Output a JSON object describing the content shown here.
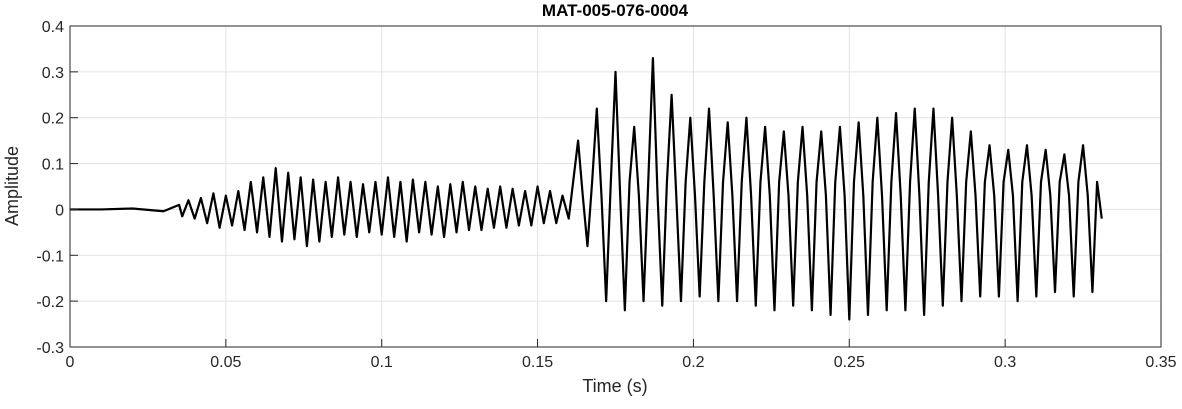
{
  "chart_data": {
    "type": "line",
    "title": "MAT-005-076-0004",
    "x_label": "Time (s)",
    "y_label": "Amplitude",
    "xlim": [
      0,
      0.35
    ],
    "xticks": [
      0,
      0.05,
      0.1,
      0.15,
      0.2,
      0.25,
      0.3,
      0.35
    ],
    "ylim": [
      -0.3,
      0.4
    ],
    "yticks": [
      -0.3,
      -0.2,
      -0.1,
      0,
      0.1,
      0.2,
      0.3,
      0.4
    ],
    "grid": true,
    "series": [
      {
        "color": "#000000",
        "x": [
          0,
          0.01,
          0.02,
          0.03,
          0.035,
          0.036,
          0.038,
          0.04,
          0.042,
          0.044,
          0.046,
          0.048,
          0.05,
          0.052,
          0.054,
          0.056,
          0.058,
          0.06,
          0.062,
          0.064,
          0.066,
          0.068,
          0.07,
          0.072,
          0.074,
          0.076,
          0.078,
          0.08,
          0.082,
          0.084,
          0.086,
          0.088,
          0.09,
          0.092,
          0.094,
          0.096,
          0.098,
          0.1,
          0.102,
          0.104,
          0.106,
          0.108,
          0.11,
          0.112,
          0.114,
          0.116,
          0.118,
          0.12,
          0.122,
          0.124,
          0.126,
          0.128,
          0.13,
          0.132,
          0.134,
          0.136,
          0.138,
          0.14,
          0.142,
          0.144,
          0.146,
          0.148,
          0.15,
          0.152,
          0.154,
          0.156,
          0.158,
          0.16,
          0.163,
          0.1645,
          0.166,
          0.1675,
          0.169,
          0.1705,
          0.172,
          0.1735,
          0.175,
          0.1765,
          0.178,
          0.1795,
          0.181,
          0.1825,
          0.184,
          0.1855,
          0.187,
          0.1885,
          0.19,
          0.1915,
          0.193,
          0.1945,
          0.196,
          0.1975,
          0.199,
          0.2005,
          0.202,
          0.2035,
          0.205,
          0.2065,
          0.208,
          0.2095,
          0.211,
          0.2125,
          0.214,
          0.2155,
          0.217,
          0.2185,
          0.22,
          0.2215,
          0.223,
          0.2245,
          0.226,
          0.2275,
          0.229,
          0.2305,
          0.232,
          0.2335,
          0.235,
          0.2365,
          0.238,
          0.2395,
          0.241,
          0.2425,
          0.244,
          0.2455,
          0.247,
          0.2485,
          0.25,
          0.2515,
          0.253,
          0.2545,
          0.256,
          0.2575,
          0.259,
          0.2605,
          0.262,
          0.2635,
          0.265,
          0.2665,
          0.268,
          0.2695,
          0.271,
          0.2725,
          0.274,
          0.2755,
          0.277,
          0.2785,
          0.28,
          0.2815,
          0.283,
          0.2845,
          0.286,
          0.2875,
          0.289,
          0.2905,
          0.292,
          0.2935,
          0.295,
          0.2965,
          0.298,
          0.2995,
          0.301,
          0.3025,
          0.304,
          0.3055,
          0.307,
          0.3085,
          0.31,
          0.3115,
          0.313,
          0.3145,
          0.316,
          0.3175,
          0.319,
          0.3205,
          0.322,
          0.3235,
          0.325,
          0.3265,
          0.328,
          0.3295,
          0.331
        ],
        "values": [
          0,
          0,
          0.002,
          -0.004,
          0.01,
          -0.015,
          0.02,
          -0.02,
          0.025,
          -0.03,
          0.035,
          -0.04,
          0.03,
          -0.035,
          0.04,
          -0.045,
          0.06,
          -0.05,
          0.07,
          -0.06,
          0.09,
          -0.07,
          0.08,
          -0.065,
          0.07,
          -0.08,
          0.065,
          -0.07,
          0.06,
          -0.06,
          0.07,
          -0.055,
          0.06,
          -0.06,
          0.055,
          -0.05,
          0.06,
          -0.055,
          0.07,
          -0.06,
          0.06,
          -0.07,
          0.065,
          -0.05,
          0.06,
          -0.055,
          0.05,
          -0.06,
          0.055,
          -0.05,
          0.06,
          -0.045,
          0.05,
          -0.045,
          0.045,
          -0.04,
          0.05,
          -0.04,
          0.045,
          -0.035,
          0.04,
          -0.035,
          0.05,
          -0.03,
          0.04,
          -0.03,
          0.03,
          -0.02,
          0.15,
          0.03,
          -0.08,
          0.06,
          0.22,
          0.03,
          -0.2,
          0.06,
          0.3,
          0.03,
          -0.22,
          0.06,
          0.18,
          0.03,
          -0.2,
          0.06,
          0.33,
          0.03,
          -0.21,
          0.06,
          0.25,
          0.03,
          -0.2,
          0.06,
          0.2,
          0.03,
          -0.19,
          0.06,
          0.22,
          0.03,
          -0.2,
          0.06,
          0.19,
          0.03,
          -0.2,
          0.06,
          0.2,
          0.03,
          -0.21,
          0.06,
          0.18,
          0.03,
          -0.22,
          0.06,
          0.17,
          0.03,
          -0.21,
          0.06,
          0.18,
          0.03,
          -0.22,
          0.06,
          0.17,
          0.03,
          -0.23,
          0.06,
          0.18,
          0.03,
          -0.24,
          0.06,
          0.19,
          0.03,
          -0.23,
          0.06,
          0.2,
          0.03,
          -0.22,
          0.06,
          0.21,
          0.03,
          -0.22,
          0.06,
          0.22,
          0.03,
          -0.23,
          0.06,
          0.22,
          0.03,
          -0.21,
          0.06,
          0.2,
          0.03,
          -0.2,
          0.06,
          0.17,
          0.03,
          -0.19,
          0.06,
          0.14,
          0.03,
          -0.19,
          0.06,
          0.13,
          0.03,
          -0.2,
          0.06,
          0.14,
          0.03,
          -0.19,
          0.06,
          0.13,
          0.03,
          -0.18,
          0.06,
          0.12,
          0.03,
          -0.19,
          0.06,
          0.14,
          0.03,
          -0.18,
          0.06,
          -0.02
        ]
      }
    ]
  }
}
